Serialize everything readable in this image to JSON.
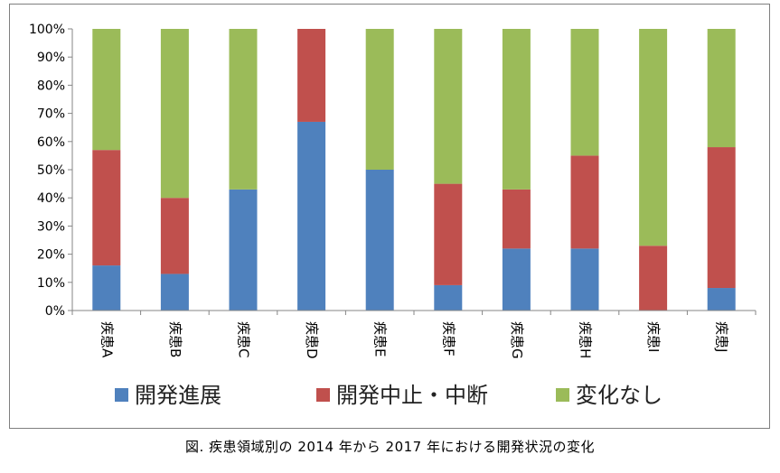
{
  "caption": "図.  疾患領域別の 2014 年から 2017 年における開発状況の変化",
  "chart_data": {
    "type": "bar",
    "stacked": true,
    "categories": [
      "疾患A",
      "疾患B",
      "疾患C",
      "疾患D",
      "疾患E",
      "疾患F",
      "疾患G",
      "疾患H",
      "疾患I",
      "疾患J"
    ],
    "y_tick_labels": [
      "0%",
      "10%",
      "20%",
      "30%",
      "40%",
      "50%",
      "60%",
      "70%",
      "80%",
      "90%",
      "100%"
    ],
    "ylim": [
      0,
      100
    ],
    "grid": false,
    "legend_position": "bottom",
    "series": [
      {
        "name": "開発進展",
        "color": "#4f81bd",
        "values": [
          16,
          13,
          43,
          67,
          50,
          9,
          22,
          22,
          0,
          8
        ]
      },
      {
        "name": "開発中止・中断",
        "color": "#c0504d",
        "values": [
          41,
          27,
          0,
          33,
          0,
          36,
          21,
          33,
          23,
          50
        ]
      },
      {
        "name": "変化なし",
        "color": "#9bbb59",
        "values": [
          43,
          60,
          57,
          0,
          50,
          55,
          57,
          45,
          77,
          42
        ]
      }
    ]
  }
}
